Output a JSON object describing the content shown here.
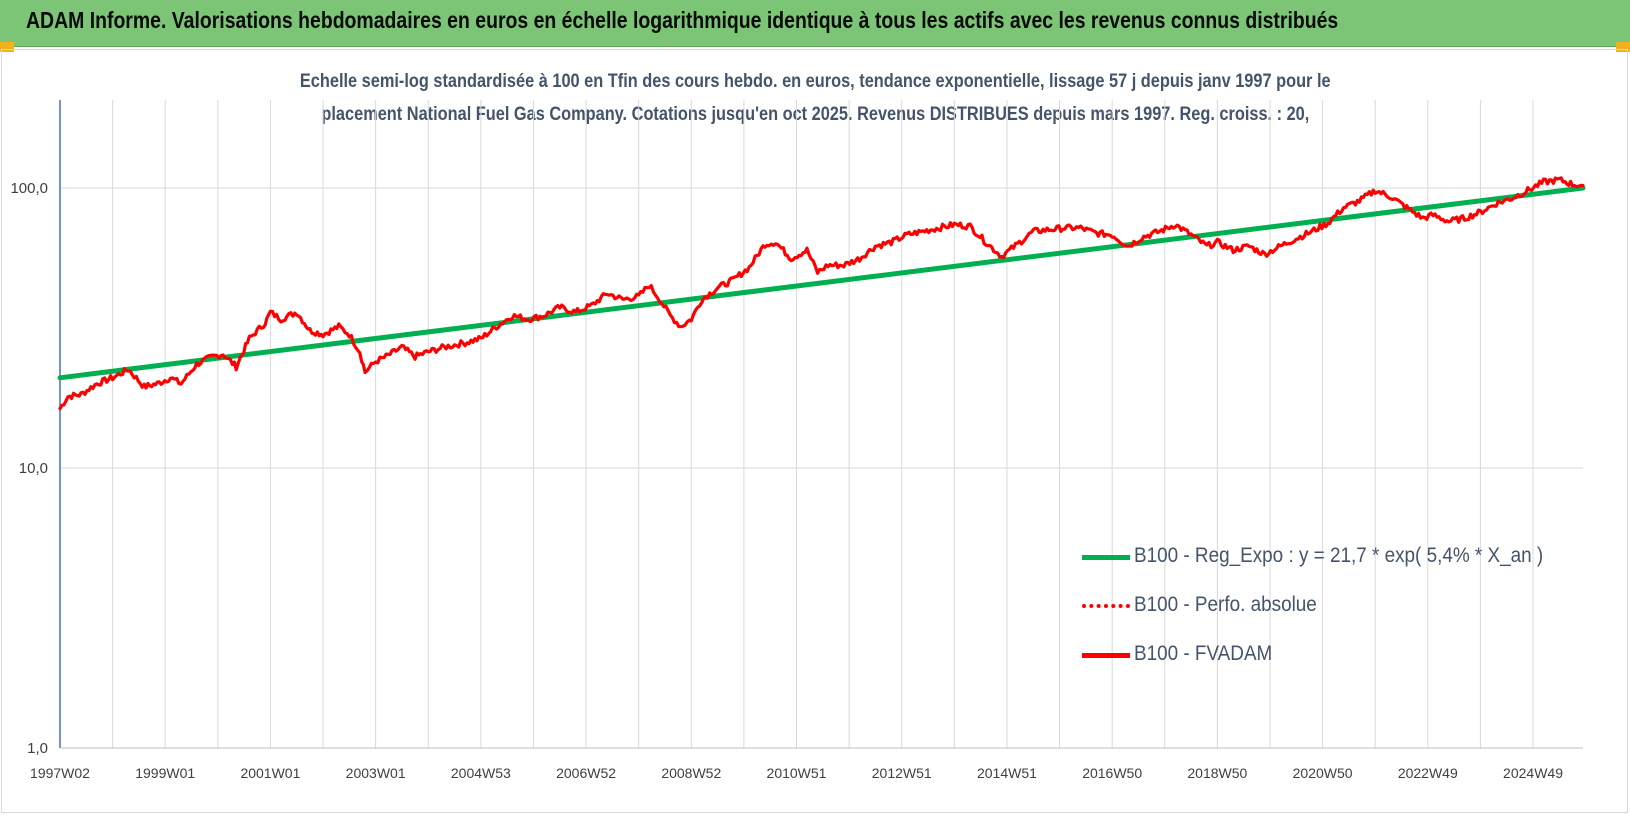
{
  "banner": {
    "title": "ADAM Informe. Valorisations hebdomadaires en euros en échelle logarithmique identique à tous les actifs avec les revenus connus distribués"
  },
  "colors": {
    "banner_bg": "#7cc576",
    "corner_accent": "#f2b21c",
    "subtitle_text": "#44546a",
    "trend_line": "#00b050",
    "fvadam_line": "#ff0000",
    "gridline": "#d9d9d9"
  },
  "chart_data": {
    "type": "line",
    "title": "Echelle semi-log standardisée à 100 en Tfin des cours hebdo. en euros, tendance exponentielle, lissage 57 j depuis janv 1997 pour le placement National Fuel Gas Company. Cotations jusqu'en oct 2025. Revenus DISTRIBUES depuis mars 1997. Reg. croiss. : 20,",
    "title_lines": [
      "Echelle semi-log standardisée à 100 en Tfin des cours hebdo. en euros, tendance exponentielle, lissage 57 j depuis janv 1997 pour le",
      "placement National Fuel Gas Company. Cotations jusqu'en oct 2025. Revenus DISTRIBUES depuis mars 1997. Reg. croiss. : 20,"
    ],
    "y_scale": "log",
    "ylim": [
      1,
      200
    ],
    "y_ticks": [
      {
        "value": 1,
        "label": "1,0"
      },
      {
        "value": 10,
        "label": "10,0"
      },
      {
        "value": 100,
        "label": "100,0"
      }
    ],
    "xlim": [
      1997.0,
      2025.95
    ],
    "x_ticks": [
      {
        "value": 1997.0,
        "label": "1997W02"
      },
      {
        "value": 1999.0,
        "label": "1999W01"
      },
      {
        "value": 2001.0,
        "label": "2001W01"
      },
      {
        "value": 2003.0,
        "label": "2003W01"
      },
      {
        "value": 2005.0,
        "label": "2004W53"
      },
      {
        "value": 2007.0,
        "label": "2006W52"
      },
      {
        "value": 2009.0,
        "label": "2008W52"
      },
      {
        "value": 2011.0,
        "label": "2010W51"
      },
      {
        "value": 2013.0,
        "label": "2012W51"
      },
      {
        "value": 2015.0,
        "label": "2014W51"
      },
      {
        "value": 2017.0,
        "label": "2016W50"
      },
      {
        "value": 2019.0,
        "label": "2018W50"
      },
      {
        "value": 2021.0,
        "label": "2020W50"
      },
      {
        "value": 2023.0,
        "label": "2022W49"
      },
      {
        "value": 2025.0,
        "label": "2024W49"
      }
    ],
    "x_minor_grid_step": 1,
    "grid": true,
    "legend_position": "right",
    "series": [
      {
        "name": "B100 - Reg_Expo : y = 21,7 * exp( 5,4% *  X_an )",
        "style": "solid",
        "color": "#00b050",
        "x": [
          1997.0,
          2025.95
        ],
        "y": [
          21.0,
          100.0
        ]
      },
      {
        "name": "B100 - Perfo. absolue",
        "style": "dotted",
        "color": "#ff0000",
        "x": [],
        "y": []
      },
      {
        "name": "B100 - FVADAM",
        "style": "solid",
        "color": "#ff0000",
        "x": [
          1997.0,
          1997.15,
          1997.4,
          1997.7,
          1998.0,
          1998.3,
          1998.6,
          1998.85,
          1999.1,
          1999.3,
          1999.6,
          1999.9,
          2000.1,
          2000.35,
          2000.6,
          2000.9,
          2001.0,
          2001.2,
          2001.5,
          2001.75,
          2002.0,
          2002.3,
          2002.5,
          2002.7,
          2002.8,
          2003.0,
          2003.2,
          2003.5,
          2003.75,
          2004.0,
          2004.3,
          2004.7,
          2005.0,
          2005.3,
          2005.6,
          2005.9,
          2006.2,
          2006.5,
          2006.8,
          2007.1,
          2007.4,
          2007.7,
          2008.0,
          2008.2,
          2008.4,
          2008.6,
          2008.8,
          2009.0,
          2009.2,
          2009.5,
          2009.8,
          2010.1,
          2010.4,
          2010.6,
          2010.9,
          2011.2,
          2011.4,
          2011.6,
          2011.9,
          2012.2,
          2012.5,
          2012.8,
          2013.1,
          2013.4,
          2013.7,
          2014.0,
          2014.3,
          2014.6,
          2014.9,
          2015.2,
          2015.5,
          2015.8,
          2016.1,
          2016.4,
          2016.7,
          2017.0,
          2017.3,
          2017.6,
          2017.9,
          2018.2,
          2018.5,
          2018.8,
          2019.0,
          2019.3,
          2019.6,
          2019.9,
          2020.2,
          2020.5,
          2020.8,
          2021.1,
          2021.4,
          2021.7,
          2022.0,
          2022.3,
          2022.6,
          2022.9,
          2023.1,
          2023.4,
          2023.7,
          2024.0,
          2024.3,
          2024.6,
          2024.9,
          2025.2,
          2025.5,
          2025.75,
          2025.95
        ],
        "y": [
          16.3,
          18.0,
          18.3,
          20.0,
          21.0,
          22.5,
          19.5,
          20.0,
          21.0,
          20.0,
          23.5,
          25.0,
          25.5,
          23.0,
          29.0,
          33.0,
          36.0,
          34.0,
          36.0,
          31.0,
          30.0,
          32.0,
          30.0,
          26.0,
          22.0,
          24.0,
          25.0,
          27.0,
          25.0,
          26.0,
          27.0,
          28.0,
          29.0,
          32.0,
          35.0,
          34.0,
          35.0,
          37.5,
          36.0,
          38.0,
          42.0,
          40.0,
          41.0,
          45.0,
          40.0,
          35.0,
          32.0,
          34.0,
          40.0,
          44.0,
          47.0,
          52.0,
          63.0,
          64.0,
          56.0,
          60.0,
          50.0,
          53.0,
          53.0,
          56.0,
          62.0,
          64.0,
          68.0,
          70.0,
          72.0,
          74.0,
          73.0,
          64.0,
          57.0,
          63.0,
          70.0,
          71.0,
          72.0,
          72.0,
          69.0,
          68.0,
          62.0,
          67.0,
          70.0,
          74.0,
          68.0,
          62.0,
          64.0,
          60.0,
          62.0,
          58.0,
          62.0,
          66.0,
          70.0,
          75.0,
          85.0,
          90.0,
          98.0,
          93.0,
          85.0,
          78.0,
          80.0,
          76.0,
          78.0,
          82.0,
          88.0,
          92.0,
          98.0,
          105.0,
          107.0,
          103.0,
          102.0
        ]
      }
    ]
  }
}
